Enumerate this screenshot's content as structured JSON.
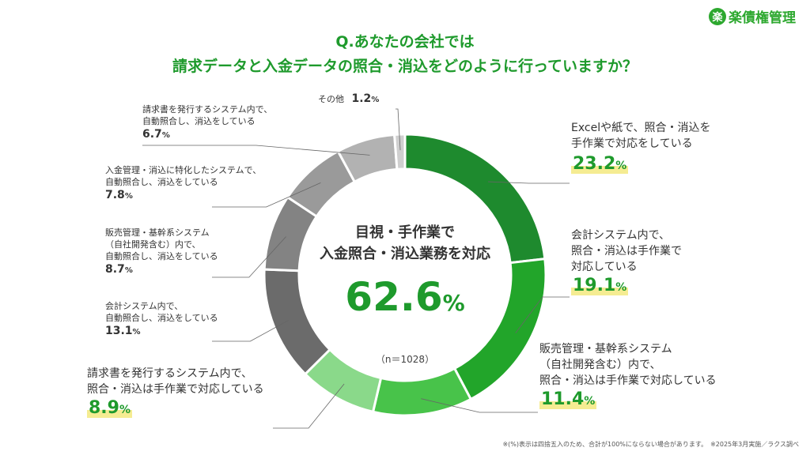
{
  "logo": {
    "icon": "楽",
    "text": "楽債権管理"
  },
  "title": {
    "line1": "Q.あなたの会社では",
    "line2": "請求データと入金データの照合・消込をどのように行っていますか？"
  },
  "center": {
    "label1": "目視・手作業で",
    "label2": "入金照合・消込業務を対応",
    "value": "62.6",
    "unit": "%",
    "sample": "（n＝1028）"
  },
  "footer": "※(%)表示は四捨五入のため、合計が100%にならない場合があります。　※2025年3月実施／ラクス調べ",
  "chart_data": {
    "type": "pie",
    "donut": true,
    "unit": "%",
    "series": [
      {
        "label": "Excelや紙で、照合・消込を手作業で対応をしている",
        "value": 23.2,
        "color": "#1e8a2e"
      },
      {
        "label": "会計システム内で、照合・消込は手作業で対応している",
        "value": 19.1,
        "color": "#22a52a"
      },
      {
        "label": "販売管理・基幹系システム（自社開発含む）内で、照合・消込は手作業で対応している",
        "value": 11.4,
        "color": "#48c34a"
      },
      {
        "label": "請求書を発行するシステム内で、照合・消込は手作業で対応している",
        "value": 8.9,
        "color": "#8ad98a"
      },
      {
        "label": "会計システム内で、自動照合し、消込をしている",
        "value": 13.1,
        "color": "#6b6b6b"
      },
      {
        "label": "販売管理・基幹系システム（自社開発含む）内で、自動照合し、消込をしている",
        "value": 8.7,
        "color": "#838383"
      },
      {
        "label": "入金管理・消込に特化したシステムで、自動照合し、消込をしている",
        "value": 7.8,
        "color": "#9a9a9a"
      },
      {
        "label": "請求書を発行するシステム内で、自動照合し、消込をしている",
        "value": 6.7,
        "color": "#b2b2b2"
      },
      {
        "label": "その他",
        "value": 1.2,
        "color": "#cfcfcf"
      }
    ]
  },
  "labels": [
    {
      "lines": [
        "Excelや紙で、照合・消込を",
        "手作業で対応をしている"
      ],
      "value": "23.2"
    },
    {
      "lines": [
        "会計システム内で、",
        "照合・消込は手作業で",
        "対応している"
      ],
      "value": "19.1"
    },
    {
      "lines": [
        "販売管理・基幹系システム",
        "（自社開発含む）内で、",
        "照合・消込は手作業で対応している"
      ],
      "value": "11.4"
    },
    {
      "lines": [
        "請求書を発行するシステム内で、",
        "照合・消込は手作業で対応している"
      ],
      "value": "8.9"
    },
    {
      "lines": [
        "会計システム内で、",
        "自動照合し、消込をしている"
      ],
      "value": "13.1"
    },
    {
      "lines": [
        "販売管理・基幹系システム",
        "（自社開発含む）内で、",
        "自動照合し、消込をしている"
      ],
      "value": "8.7"
    },
    {
      "lines": [
        "入金管理・消込に特化したシステムで、",
        "自動照合し、消込をしている"
      ],
      "value": "7.8"
    },
    {
      "lines": [
        "請求書を発行するシステム内で、",
        "自動照合し、消込をしている"
      ],
      "value": "6.7"
    },
    {
      "lines": [
        "その他"
      ],
      "value": "1.2"
    }
  ]
}
